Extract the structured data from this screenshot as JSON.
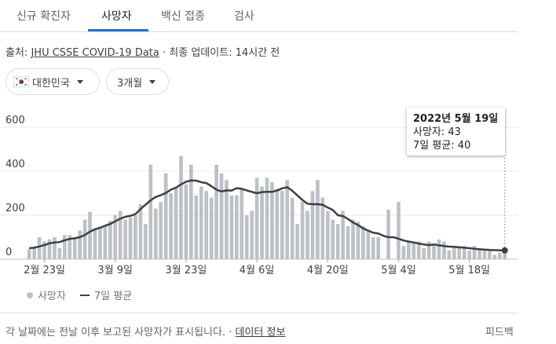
{
  "tabs": [
    {
      "label": "신규 확진자",
      "active": false
    },
    {
      "label": "사망자",
      "active": true
    },
    {
      "label": "백신 접종",
      "active": false
    },
    {
      "label": "검사",
      "active": false
    }
  ],
  "source": {
    "prefix": "출처:",
    "link": "JHU CSSE COVID-19 Data",
    "separator": "·",
    "update_text": "최종 업데이트: 14시간 전"
  },
  "filters": {
    "region": {
      "label": "대한민국",
      "icon": "korea-flag-icon"
    },
    "period": {
      "label": "3개월"
    }
  },
  "tooltip": {
    "date": "2022년 5월 19일",
    "deaths_label": "사망자: 43",
    "avg_label": "7일 평균: 40"
  },
  "legend": {
    "bars": "사망자",
    "line": "7일 평균"
  },
  "footer": {
    "note": "각 날짜에는 전날 이후 보고된 사망자가 표시됩니다.",
    "separator": "·",
    "link": "데이터 정보",
    "feedback": "피드백"
  },
  "colors": {
    "bar": "#bdc1c6",
    "line": "#3c4043",
    "accent": "#1a73e8"
  },
  "chart_data": {
    "type": "bar",
    "title": "",
    "xlabel": "",
    "ylabel": "",
    "ylim": [
      0,
      600
    ],
    "yticks": [
      0,
      200,
      400,
      600
    ],
    "grid": true,
    "legend_position": "bottom-left",
    "x_tick_labels": [
      "2월 23일",
      "3월 9일",
      "3월 23일",
      "4월 6일",
      "4월 20일",
      "5월 4일",
      "5월 18일"
    ],
    "x_tick_indices": [
      3,
      17,
      31,
      45,
      59,
      73,
      87
    ],
    "series": [
      {
        "name": "사망자",
        "type": "bar",
        "values": [
          45,
          50,
          100,
          80,
          90,
          100,
          50,
          110,
          110,
          100,
          130,
          180,
          215,
          140,
          145,
          155,
          175,
          200,
          220,
          180,
          190,
          200,
          250,
          160,
          430,
          230,
          260,
          390,
          300,
          330,
          470,
          340,
          430,
          290,
          330,
          310,
          280,
          430,
          390,
          360,
          290,
          290,
          320,
          200,
          220,
          370,
          330,
          370,
          350,
          320,
          310,
          360,
          280,
          160,
          260,
          220,
          310,
          360,
          280,
          220,
          180,
          160,
          220,
          150,
          180,
          170,
          150,
          130,
          100,
          100,
          0,
          225,
          0,
          260,
          60,
          80,
          80,
          80,
          50,
          80,
          70,
          90,
          80,
          40,
          60,
          50,
          60,
          40,
          60,
          50,
          40,
          45,
          20,
          30,
          43
        ]
      },
      {
        "name": "7일 평균",
        "type": "line",
        "values": [
          50,
          52,
          58,
          64,
          72,
          76,
          78,
          86,
          92,
          95,
          100,
          110,
          125,
          136,
          143,
          152,
          160,
          172,
          184,
          193,
          197,
          205,
          228,
          248,
          268,
          283,
          291,
          301,
          316,
          325,
          340,
          352,
          358,
          357,
          350,
          346,
          332,
          316,
          308,
          313,
          312,
          323,
          320,
          313,
          306,
          300,
          305,
          306,
          306,
          312,
          322,
          327,
          311,
          290,
          269,
          252,
          250,
          250,
          247,
          235,
          224,
          200,
          196,
          183,
          167,
          155,
          140,
          130,
          120,
          117,
          106,
          100,
          100,
          93,
          85,
          80,
          76,
          71,
          67,
          64,
          67,
          63,
          60,
          57,
          56,
          54,
          52,
          50,
          47,
          45,
          44,
          42,
          41,
          40,
          40
        ]
      }
    ],
    "highlight_index": 94
  }
}
